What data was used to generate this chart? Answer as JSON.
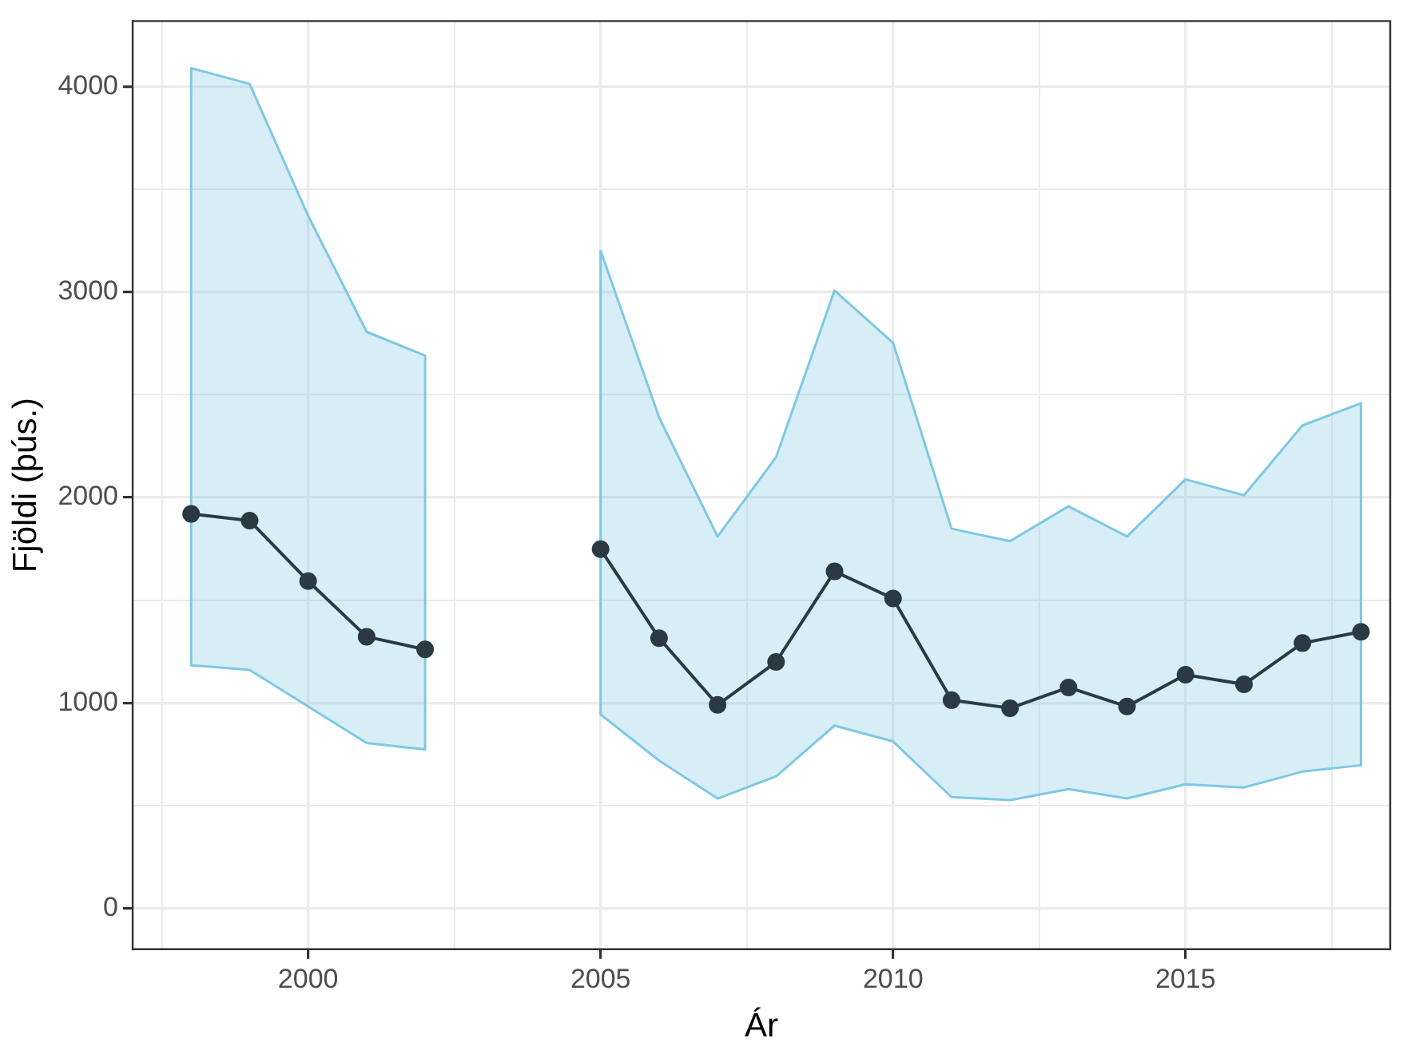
{
  "chart_data": {
    "type": "line",
    "xlabel": "Ár",
    "ylabel": "Fjöldi (þús.)",
    "x": [
      1998,
      1999,
      2000,
      2001,
      2002,
      2003,
      2004,
      2005,
      2006,
      2007,
      2008,
      2009,
      2010,
      2011,
      2012,
      2013,
      2014,
      2015,
      2016,
      2017,
      2018
    ],
    "series": [
      {
        "color": "#2b3a42",
        "values": [
          1920,
          1887,
          1593,
          1322,
          1260,
          null,
          null,
          1748,
          1315,
          990,
          1199,
          1640,
          1508,
          1013,
          974,
          1075,
          982,
          1137,
          1090,
          1291,
          1346
        ],
        "lower": [
          1183,
          1160,
          982,
          804,
          773,
          null,
          null,
          943,
          719,
          534,
          642,
          889,
          812,
          541,
          526,
          580,
          534,
          603,
          588,
          665,
          696
        ],
        "upper": [
          4091,
          4014,
          3372,
          2807,
          2691,
          null,
          null,
          3202,
          2390,
          1810,
          2196,
          3008,
          2753,
          1848,
          1787,
          1957,
          1810,
          2088,
          2011,
          2351,
          2459
        ]
      }
    ],
    "xlim": [
      1997,
      2018.5
    ],
    "xticks": [
      {
        "value": 1997.5,
        "label": null
      },
      2000,
      {
        "value": 2002.5,
        "label": null
      },
      2005,
      {
        "value": 2007.5,
        "label": null
      },
      2010,
      {
        "value": 2012.5,
        "label": null
      },
      2015,
      {
        "value": 2017.5,
        "label": null
      }
    ],
    "ylim": [
      -200,
      4320
    ],
    "yticks": [
      0,
      {
        "value": 500,
        "label": null
      },
      1000,
      {
        "value": 1500,
        "label": null
      },
      2000,
      {
        "value": 2500,
        "label": null
      },
      3000,
      {
        "value": 3500,
        "label": null
      },
      4000
    ],
    "grid": true,
    "legend": false,
    "marker": "circle",
    "line_style": "solid"
  }
}
